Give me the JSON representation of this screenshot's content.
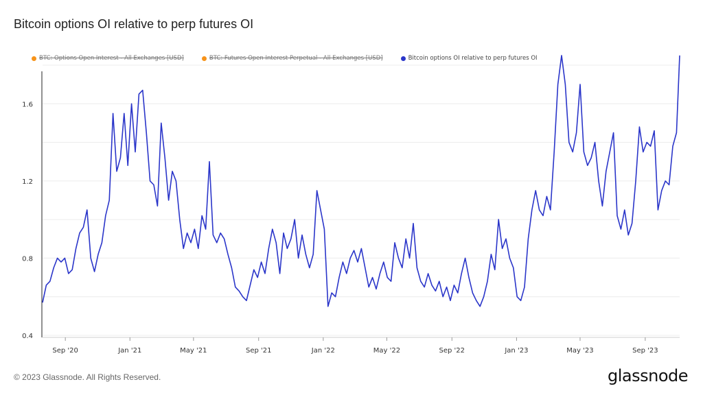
{
  "header": {
    "title": "Bitcoin options OI relative to perp futures OI"
  },
  "legend": [
    {
      "label": "BTC: Options Open Interest - All Exchanges [USD]",
      "color": "#f7931a",
      "active": false
    },
    {
      "label": "BTC: Futures Open Interest Perpetual - All Exchanges [USD]",
      "color": "#f7931a",
      "active": false
    },
    {
      "label": "Bitcoin options OI relative to perp futures OI",
      "color": "#2a35c9",
      "active": true
    }
  ],
  "footer": {
    "copyright": "© 2023 Glassnode. All Rights Reserved.",
    "brand": "glassnode"
  },
  "chart_data": {
    "type": "line",
    "title": "Bitcoin options OI relative to perp futures OI",
    "xlabel": "",
    "ylabel": "",
    "ylim": [
      0.4,
      1.8
    ],
    "xlim": [
      "2020-07-20",
      "2023-11-05"
    ],
    "grid": true,
    "legend_position": "top-left",
    "y_ticks": [
      "0.4",
      "0.8",
      "1.2",
      "1.6"
    ],
    "x_ticks": [
      {
        "label": "Sep '20",
        "date": "2020-09-01"
      },
      {
        "label": "Jan '21",
        "date": "2021-01-01"
      },
      {
        "label": "May '21",
        "date": "2021-05-01"
      },
      {
        "label": "Sep '21",
        "date": "2021-09-01"
      },
      {
        "label": "Jan '22",
        "date": "2022-01-01"
      },
      {
        "label": "May '22",
        "date": "2022-05-01"
      },
      {
        "label": "Sep '22",
        "date": "2022-09-01"
      },
      {
        "label": "Jan '23",
        "date": "2023-01-01"
      },
      {
        "label": "May '23",
        "date": "2023-05-01"
      },
      {
        "label": "Sep '23",
        "date": "2023-09-01"
      }
    ],
    "series": [
      {
        "name": "Bitcoin options OI relative to perp futures OI",
        "color": "#2a35c9",
        "points": [
          [
            "2020-07-20",
            0.57
          ],
          [
            "2020-07-27",
            0.66
          ],
          [
            "2020-08-03",
            0.68
          ],
          [
            "2020-08-10",
            0.75
          ],
          [
            "2020-08-17",
            0.8
          ],
          [
            "2020-08-24",
            0.78
          ],
          [
            "2020-08-31",
            0.8
          ],
          [
            "2020-09-07",
            0.72
          ],
          [
            "2020-09-14",
            0.74
          ],
          [
            "2020-09-21",
            0.85
          ],
          [
            "2020-09-28",
            0.93
          ],
          [
            "2020-10-05",
            0.96
          ],
          [
            "2020-10-12",
            1.05
          ],
          [
            "2020-10-19",
            0.8
          ],
          [
            "2020-10-26",
            0.73
          ],
          [
            "2020-11-02",
            0.82
          ],
          [
            "2020-11-09",
            0.88
          ],
          [
            "2020-11-16",
            1.02
          ],
          [
            "2020-11-23",
            1.1
          ],
          [
            "2020-11-30",
            1.55
          ],
          [
            "2020-12-07",
            1.25
          ],
          [
            "2020-12-14",
            1.32
          ],
          [
            "2020-12-21",
            1.55
          ],
          [
            "2020-12-28",
            1.28
          ],
          [
            "2021-01-04",
            1.6
          ],
          [
            "2021-01-11",
            1.35
          ],
          [
            "2021-01-18",
            1.65
          ],
          [
            "2021-01-25",
            1.67
          ],
          [
            "2021-02-01",
            1.45
          ],
          [
            "2021-02-08",
            1.2
          ],
          [
            "2021-02-15",
            1.18
          ],
          [
            "2021-02-22",
            1.07
          ],
          [
            "2021-03-01",
            1.5
          ],
          [
            "2021-03-08",
            1.32
          ],
          [
            "2021-03-15",
            1.1
          ],
          [
            "2021-03-22",
            1.25
          ],
          [
            "2021-03-29",
            1.2
          ],
          [
            "2021-04-05",
            1.0
          ],
          [
            "2021-04-12",
            0.85
          ],
          [
            "2021-04-19",
            0.93
          ],
          [
            "2021-04-26",
            0.88
          ],
          [
            "2021-05-03",
            0.95
          ],
          [
            "2021-05-10",
            0.85
          ],
          [
            "2021-05-17",
            1.02
          ],
          [
            "2021-05-24",
            0.95
          ],
          [
            "2021-05-31",
            1.3
          ],
          [
            "2021-06-07",
            0.92
          ],
          [
            "2021-06-14",
            0.88
          ],
          [
            "2021-06-21",
            0.93
          ],
          [
            "2021-06-28",
            0.9
          ],
          [
            "2021-07-05",
            0.82
          ],
          [
            "2021-07-12",
            0.75
          ],
          [
            "2021-07-19",
            0.65
          ],
          [
            "2021-07-26",
            0.63
          ],
          [
            "2021-08-02",
            0.6
          ],
          [
            "2021-08-09",
            0.58
          ],
          [
            "2021-08-16",
            0.66
          ],
          [
            "2021-08-23",
            0.74
          ],
          [
            "2021-08-30",
            0.7
          ],
          [
            "2021-09-06",
            0.78
          ],
          [
            "2021-09-13",
            0.72
          ],
          [
            "2021-09-20",
            0.85
          ],
          [
            "2021-09-27",
            0.95
          ],
          [
            "2021-10-04",
            0.88
          ],
          [
            "2021-10-11",
            0.72
          ],
          [
            "2021-10-18",
            0.93
          ],
          [
            "2021-10-25",
            0.85
          ],
          [
            "2021-11-01",
            0.9
          ],
          [
            "2021-11-08",
            1.0
          ],
          [
            "2021-11-15",
            0.8
          ],
          [
            "2021-11-22",
            0.92
          ],
          [
            "2021-11-29",
            0.82
          ],
          [
            "2021-12-06",
            0.75
          ],
          [
            "2021-12-13",
            0.82
          ],
          [
            "2021-12-20",
            1.15
          ],
          [
            "2021-12-27",
            1.05
          ],
          [
            "2022-01-03",
            0.95
          ],
          [
            "2022-01-10",
            0.55
          ],
          [
            "2022-01-17",
            0.62
          ],
          [
            "2022-01-24",
            0.6
          ],
          [
            "2022-01-31",
            0.7
          ],
          [
            "2022-02-07",
            0.78
          ],
          [
            "2022-02-14",
            0.72
          ],
          [
            "2022-02-21",
            0.8
          ],
          [
            "2022-02-28",
            0.84
          ],
          [
            "2022-03-07",
            0.78
          ],
          [
            "2022-03-14",
            0.85
          ],
          [
            "2022-03-21",
            0.75
          ],
          [
            "2022-03-28",
            0.65
          ],
          [
            "2022-04-04",
            0.7
          ],
          [
            "2022-04-11",
            0.64
          ],
          [
            "2022-04-18",
            0.72
          ],
          [
            "2022-04-25",
            0.78
          ],
          [
            "2022-05-02",
            0.7
          ],
          [
            "2022-05-09",
            0.68
          ],
          [
            "2022-05-16",
            0.88
          ],
          [
            "2022-05-23",
            0.8
          ],
          [
            "2022-05-30",
            0.75
          ],
          [
            "2022-06-06",
            0.9
          ],
          [
            "2022-06-13",
            0.8
          ],
          [
            "2022-06-20",
            0.98
          ],
          [
            "2022-06-27",
            0.75
          ],
          [
            "2022-07-04",
            0.68
          ],
          [
            "2022-07-11",
            0.65
          ],
          [
            "2022-07-18",
            0.72
          ],
          [
            "2022-07-25",
            0.66
          ],
          [
            "2022-08-01",
            0.63
          ],
          [
            "2022-08-08",
            0.68
          ],
          [
            "2022-08-15",
            0.6
          ],
          [
            "2022-08-22",
            0.65
          ],
          [
            "2022-08-29",
            0.58
          ],
          [
            "2022-09-05",
            0.66
          ],
          [
            "2022-09-12",
            0.62
          ],
          [
            "2022-09-19",
            0.72
          ],
          [
            "2022-09-26",
            0.8
          ],
          [
            "2022-10-03",
            0.7
          ],
          [
            "2022-10-10",
            0.62
          ],
          [
            "2022-10-17",
            0.58
          ],
          [
            "2022-10-24",
            0.55
          ],
          [
            "2022-10-31",
            0.6
          ],
          [
            "2022-11-07",
            0.68
          ],
          [
            "2022-11-14",
            0.82
          ],
          [
            "2022-11-21",
            0.74
          ],
          [
            "2022-11-28",
            1.0
          ],
          [
            "2022-12-05",
            0.85
          ],
          [
            "2022-12-12",
            0.9
          ],
          [
            "2022-12-19",
            0.8
          ],
          [
            "2022-12-26",
            0.75
          ],
          [
            "2023-01-02",
            0.6
          ],
          [
            "2023-01-09",
            0.58
          ],
          [
            "2023-01-16",
            0.65
          ],
          [
            "2023-01-23",
            0.9
          ],
          [
            "2023-01-30",
            1.05
          ],
          [
            "2023-02-06",
            1.15
          ],
          [
            "2023-02-13",
            1.05
          ],
          [
            "2023-02-20",
            1.02
          ],
          [
            "2023-02-27",
            1.12
          ],
          [
            "2023-03-06",
            1.05
          ],
          [
            "2023-03-13",
            1.35
          ],
          [
            "2023-03-20",
            1.7
          ],
          [
            "2023-03-27",
            1.85
          ],
          [
            "2023-04-03",
            1.7
          ],
          [
            "2023-04-10",
            1.4
          ],
          [
            "2023-04-17",
            1.35
          ],
          [
            "2023-04-24",
            1.45
          ],
          [
            "2023-05-01",
            1.7
          ],
          [
            "2023-05-08",
            1.35
          ],
          [
            "2023-05-15",
            1.28
          ],
          [
            "2023-05-22",
            1.32
          ],
          [
            "2023-05-29",
            1.4
          ],
          [
            "2023-06-05",
            1.2
          ],
          [
            "2023-06-12",
            1.07
          ],
          [
            "2023-06-19",
            1.25
          ],
          [
            "2023-06-26",
            1.35
          ],
          [
            "2023-07-03",
            1.45
          ],
          [
            "2023-07-10",
            1.02
          ],
          [
            "2023-07-17",
            0.95
          ],
          [
            "2023-07-24",
            1.05
          ],
          [
            "2023-07-31",
            0.92
          ],
          [
            "2023-08-07",
            0.98
          ],
          [
            "2023-08-14",
            1.2
          ],
          [
            "2023-08-21",
            1.48
          ],
          [
            "2023-08-28",
            1.35
          ],
          [
            "2023-09-04",
            1.4
          ],
          [
            "2023-09-11",
            1.38
          ],
          [
            "2023-09-18",
            1.46
          ],
          [
            "2023-09-25",
            1.05
          ],
          [
            "2023-10-02",
            1.15
          ],
          [
            "2023-10-09",
            1.2
          ],
          [
            "2023-10-16",
            1.18
          ],
          [
            "2023-10-23",
            1.38
          ],
          [
            "2023-10-30",
            1.45
          ],
          [
            "2023-11-05",
            1.85
          ]
        ]
      }
    ]
  }
}
